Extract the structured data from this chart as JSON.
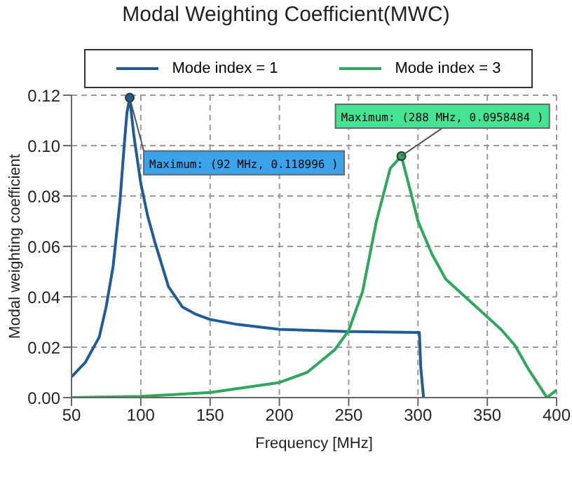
{
  "chart_data": {
    "type": "line",
    "title": "Modal Weighting Coefficient(MWC)",
    "xlabel": "Frequency [MHz]",
    "ylabel": "Modal weighting coefficient",
    "xlim": [
      50,
      400
    ],
    "xticks": [
      50,
      100,
      150,
      200,
      250,
      300,
      350,
      400
    ],
    "ylim": [
      0,
      0.12
    ],
    "yticks": [
      {
        "value": 0,
        "label": "0.00"
      },
      0.02,
      0.04,
      0.06,
      0.08,
      {
        "value": 0.1,
        "label": "0.10"
      },
      0.12
    ],
    "grid": true,
    "legend": "top",
    "line_style": "solid",
    "series": [
      {
        "name": "Mode index = 1",
        "color": "#1f5c99",
        "x": [
          50,
          60,
          70,
          75,
          80,
          85,
          88,
          90,
          92,
          95,
          100,
          105,
          110,
          120,
          130,
          140,
          150,
          170,
          200,
          250,
          301,
          302,
          304
        ],
        "values": [
          0.0082,
          0.014,
          0.024,
          0.036,
          0.052,
          0.078,
          0.1,
          0.113,
          0.119,
          0.104,
          0.085,
          0.072,
          0.062,
          0.044,
          0.036,
          0.033,
          0.031,
          0.029,
          0.0271,
          0.0262,
          0.0258,
          0.012,
          0
        ]
      },
      {
        "name": "Mode index = 3",
        "color": "#2ea85c",
        "x": [
          50,
          100,
          150,
          200,
          220,
          240,
          250,
          260,
          270,
          280,
          288,
          295,
          300,
          310,
          320,
          340,
          360,
          370,
          380,
          390,
          393,
          400
        ],
        "values": [
          0,
          0.0005,
          0.002,
          0.006,
          0.01,
          0.019,
          0.0266,
          0.042,
          0.07,
          0.091,
          0.0958,
          0.081,
          0.07,
          0.057,
          0.047,
          0.037,
          0.027,
          0.0207,
          0.011,
          0.0026,
          0,
          0.003
        ]
      }
    ],
    "annotations": [
      {
        "text": "Maximum: (92 MHz, 0.118996 )",
        "x": 92,
        "y": 0.118996
      },
      {
        "text": "Maximum: (288 MHz, 0.0958484 )",
        "x": 288,
        "y": 0.0958484
      }
    ]
  }
}
